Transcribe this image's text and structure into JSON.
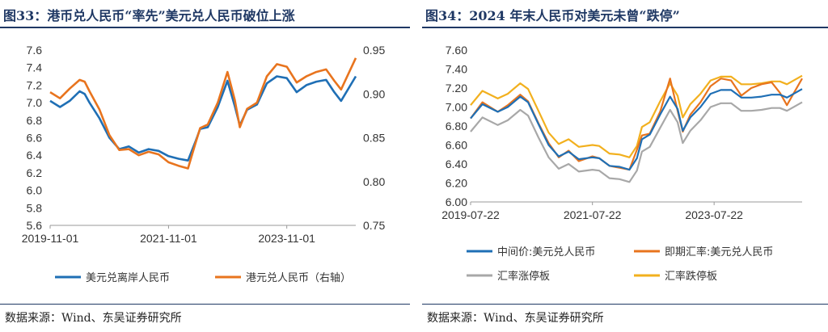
{
  "left": {
    "title": "图33：港币兑人民币“率先”美元兑人民币破位上涨",
    "source": "数据来源：Wind、东吴证券研究所"
  },
  "right": {
    "title": "图34：2024 年末人民币对美元未曾“跌停”",
    "source": "数据来源：Wind、东吴证券研究所"
  },
  "chart_data": [
    {
      "type": "line",
      "title": "图33：港币兑人民币“率先”美元兑人民币破位上涨",
      "xlabel": "",
      "ylabel": "",
      "x_ticks": [
        "2019-11-01",
        "2021-11-01",
        "2023-11-01"
      ],
      "x_range": [
        "2019-11-01",
        "2024-12-31"
      ],
      "ylim_left": [
        5.6,
        7.6
      ],
      "y_ticks_left": [
        "7.6",
        "7.4",
        "7.2",
        "7.0",
        "6.8",
        "6.6",
        "6.4",
        "6.2",
        "6.0",
        "5.8",
        "5.6"
      ],
      "ylim_right": [
        0.75,
        0.95
      ],
      "y_ticks_right": [
        "0.95",
        "0.90",
        "0.85",
        "0.80",
        "0.75"
      ],
      "grid": false,
      "legend": "bottom",
      "x": [
        "2019-11-01",
        "2020-01-01",
        "2020-03-01",
        "2020-05-01",
        "2020-06-01",
        "2020-07-01",
        "2020-09-01",
        "2020-11-01",
        "2021-01-01",
        "2021-03-01",
        "2021-05-01",
        "2021-07-01",
        "2021-09-01",
        "2021-11-01",
        "2022-01-01",
        "2022-03-01",
        "2022-04-15",
        "2022-05-15",
        "2022-07-01",
        "2022-09-01",
        "2022-10-31",
        "2022-12-15",
        "2023-01-15",
        "2023-03-01",
        "2023-05-01",
        "2023-07-01",
        "2023-09-01",
        "2023-11-01",
        "2024-01-01",
        "2024-03-01",
        "2024-05-01",
        "2024-07-01",
        "2024-08-20",
        "2024-10-01",
        "2024-12-31"
      ],
      "series": [
        {
          "name": "美元兑离岸人民币",
          "axis": "left",
          "color": "#1f6fb5",
          "values": [
            7.02,
            6.95,
            7.02,
            7.13,
            7.1,
            7.0,
            6.82,
            6.6,
            6.47,
            6.5,
            6.43,
            6.47,
            6.45,
            6.39,
            6.36,
            6.34,
            6.55,
            6.7,
            6.72,
            6.95,
            7.25,
            6.96,
            6.74,
            6.92,
            6.98,
            7.22,
            7.3,
            7.28,
            7.12,
            7.2,
            7.24,
            7.26,
            7.12,
            7.02,
            7.3
          ]
        },
        {
          "name": "港元兑人民币（右轴）",
          "axis": "right",
          "color": "#e8741e",
          "values": [
            0.902,
            0.895,
            0.906,
            0.916,
            0.914,
            0.903,
            0.882,
            0.853,
            0.836,
            0.837,
            0.83,
            0.834,
            0.831,
            0.822,
            0.818,
            0.815,
            0.843,
            0.861,
            0.865,
            0.89,
            0.925,
            0.893,
            0.862,
            0.883,
            0.89,
            0.92,
            0.934,
            0.931,
            0.913,
            0.92,
            0.925,
            0.928,
            0.915,
            0.905,
            0.941
          ]
        }
      ]
    },
    {
      "type": "line",
      "title": "图34：2024 年末人民币对美元未曾“跌停”",
      "xlabel": "",
      "ylabel": "",
      "x_ticks": [
        "2019-07-22",
        "2021-07-22",
        "2023-07-22"
      ],
      "x_range": [
        "2019-07-22",
        "2024-12-31"
      ],
      "ylim": [
        6.0,
        7.6
      ],
      "y_ticks": [
        "7.60",
        "7.40",
        "7.20",
        "7.00",
        "6.80",
        "6.60",
        "6.40",
        "6.20",
        "6.00"
      ],
      "grid": false,
      "legend": "bottom",
      "x": [
        "2019-07-22",
        "2019-10-01",
        "2020-01-01",
        "2020-03-01",
        "2020-05-15",
        "2020-07-01",
        "2020-09-01",
        "2020-11-01",
        "2021-01-01",
        "2021-03-01",
        "2021-05-01",
        "2021-07-22",
        "2021-09-01",
        "2021-11-01",
        "2022-01-01",
        "2022-03-01",
        "2022-04-15",
        "2022-05-15",
        "2022-07-01",
        "2022-09-01",
        "2022-10-31",
        "2022-12-15",
        "2023-01-15",
        "2023-03-01",
        "2023-05-01",
        "2023-07-01",
        "2023-09-01",
        "2023-11-01",
        "2024-01-01",
        "2024-03-01",
        "2024-05-01",
        "2024-07-01",
        "2024-08-20",
        "2024-10-01",
        "2024-12-31"
      ],
      "series": [
        {
          "name": "中间价:美元兑人民币",
          "color": "#1f6fb5",
          "values": [
            6.88,
            7.03,
            6.95,
            7.0,
            7.11,
            7.05,
            6.82,
            6.6,
            6.48,
            6.53,
            6.45,
            6.47,
            6.46,
            6.38,
            6.37,
            6.34,
            6.46,
            6.66,
            6.71,
            6.92,
            7.11,
            6.98,
            6.75,
            6.89,
            7.0,
            7.14,
            7.18,
            7.18,
            7.1,
            7.1,
            7.11,
            7.13,
            7.13,
            7.1,
            7.19
          ]
        },
        {
          "name": "即期汇率:美元兑人民币",
          "color": "#e8741e",
          "values": [
            6.88,
            7.05,
            6.95,
            7.02,
            7.13,
            7.06,
            6.83,
            6.62,
            6.47,
            6.54,
            6.43,
            6.48,
            6.46,
            6.38,
            6.36,
            6.34,
            6.55,
            6.7,
            6.72,
            6.95,
            7.3,
            6.96,
            6.74,
            6.92,
            7.05,
            7.22,
            7.3,
            7.28,
            7.12,
            7.2,
            7.24,
            7.26,
            7.15,
            7.02,
            7.3
          ]
        },
        {
          "name": "汇率涨停板",
          "color": "#a8a8a8",
          "values": [
            6.74,
            6.89,
            6.81,
            6.86,
            6.97,
            6.91,
            6.68,
            6.47,
            6.35,
            6.4,
            6.32,
            6.34,
            6.33,
            6.25,
            6.24,
            6.21,
            6.33,
            6.53,
            6.58,
            6.78,
            6.97,
            6.84,
            6.62,
            6.75,
            6.86,
            7.0,
            7.04,
            7.04,
            6.96,
            6.96,
            6.97,
            6.99,
            6.99,
            6.96,
            7.05
          ]
        },
        {
          "name": "汇率跌停板",
          "color": "#f2b01e",
          "values": [
            7.02,
            7.17,
            7.09,
            7.14,
            7.25,
            7.19,
            6.96,
            6.73,
            6.61,
            6.66,
            6.58,
            6.6,
            6.59,
            6.51,
            6.5,
            6.47,
            6.59,
            6.79,
            6.84,
            7.06,
            7.25,
            7.12,
            6.89,
            7.03,
            7.14,
            7.28,
            7.32,
            7.32,
            7.24,
            7.24,
            7.25,
            7.27,
            7.27,
            7.24,
            7.33
          ]
        }
      ]
    }
  ]
}
